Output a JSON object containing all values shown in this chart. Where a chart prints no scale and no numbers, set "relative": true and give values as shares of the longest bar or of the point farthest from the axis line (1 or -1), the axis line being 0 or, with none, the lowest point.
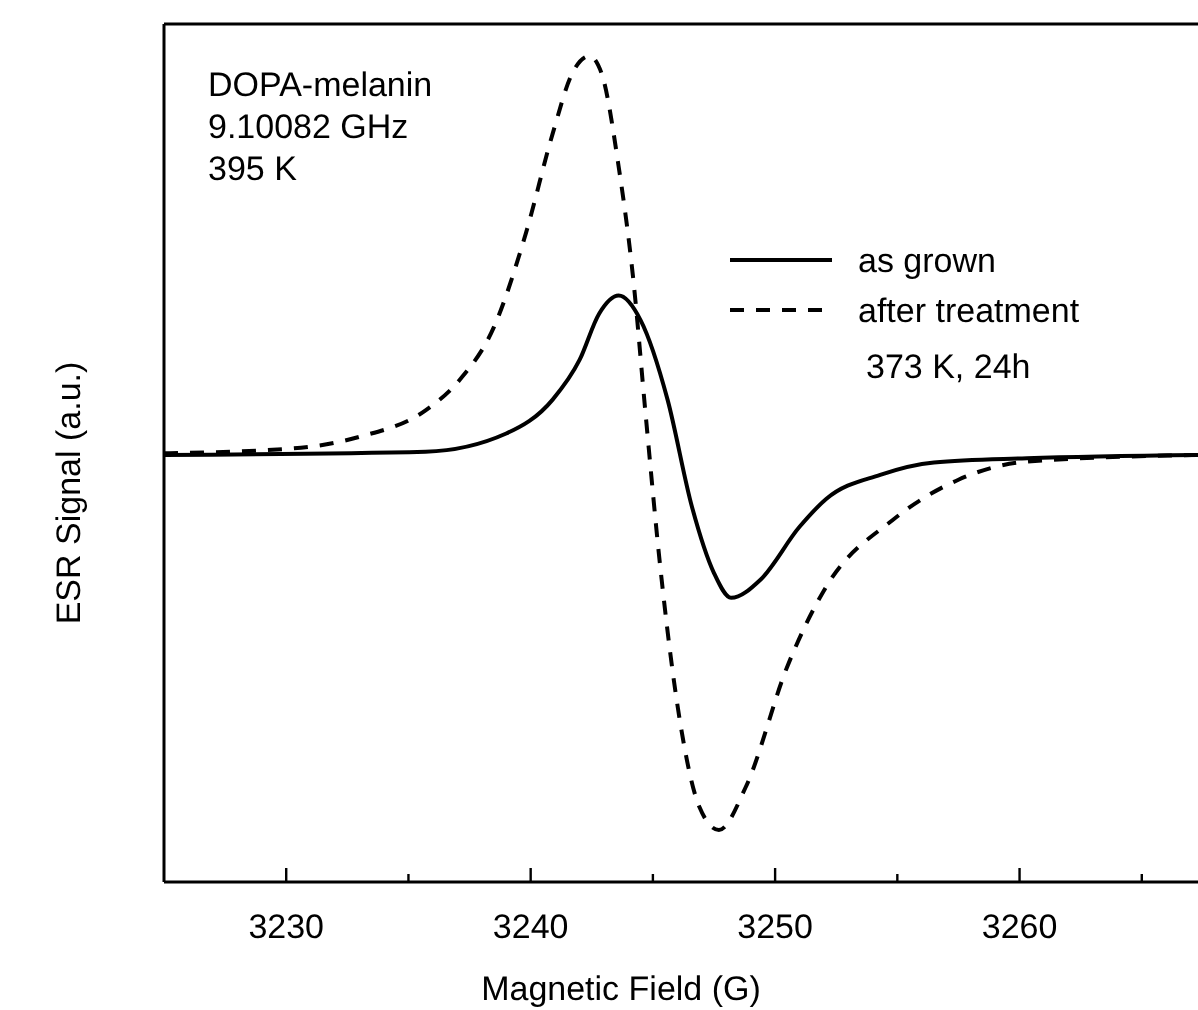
{
  "chart_data": {
    "type": "line",
    "relative": true,
    "xlabel": "Magnetic Field (G)",
    "ylabel": "ESR Signal (a.u.)",
    "xlim": [
      3225,
      3267.3
    ],
    "xticks": [
      3230,
      {
        "value": 3235,
        "label": null
      },
      3240,
      {
        "value": 3245,
        "label": null
      },
      3250,
      {
        "value": 3255,
        "label": null
      },
      3260,
      {
        "value": 3265,
        "label": null
      }
    ],
    "legend": "top right",
    "grid": false,
    "marker": "none",
    "annotations": [
      "DOPA-melanin\n9.10082 GHz\n395 K",
      "373 K, 24h"
    ],
    "series": [
      {
        "name": "as grown",
        "color": "#000000",
        "line_style": "solid",
        "x": [
          3225,
          3235.7,
          3239.0,
          3240.9,
          3242.0,
          3242.8,
          3243.6,
          3244.5,
          3245.6,
          3246.6,
          3247.5,
          3248.2,
          3249.4,
          3251.0,
          3252.1,
          3254.3,
          3256.5,
          3260.3,
          3267.3
        ],
        "values": [
          0.517,
          0.521,
          0.543,
          0.584,
          0.632,
          0.688,
          0.71,
          0.68,
          0.584,
          0.454,
          0.374,
          0.344,
          0.366,
          0.43,
          0.464,
          0.493,
          0.508,
          0.513,
          0.517
        ]
      },
      {
        "name": "after treatment",
        "color": "#000000",
        "line_style": "dashed",
        "x": [
          3225,
          3230.3,
          3233.0,
          3235.7,
          3237.1,
          3238.5,
          3239.8,
          3240.9,
          3241.7,
          3242.4,
          3242.9,
          3243.6,
          3244.2,
          3244.7,
          3245.3,
          3246.1,
          3246.9,
          3247.7,
          3248.8,
          3250.5,
          3252.1,
          3254.8,
          3257.5,
          3260.3,
          3267.3
        ],
        "values": [
          0.519,
          0.525,
          0.539,
          0.571,
          0.608,
          0.672,
          0.785,
          0.906,
          0.979,
          1,
          0.979,
          0.866,
          0.729,
          0.567,
          0.382,
          0.196,
          0.091,
          0.063,
          0.115,
          0.261,
          0.358,
          0.438,
          0.487,
          0.509,
          0.517
        ]
      }
    ]
  }
}
